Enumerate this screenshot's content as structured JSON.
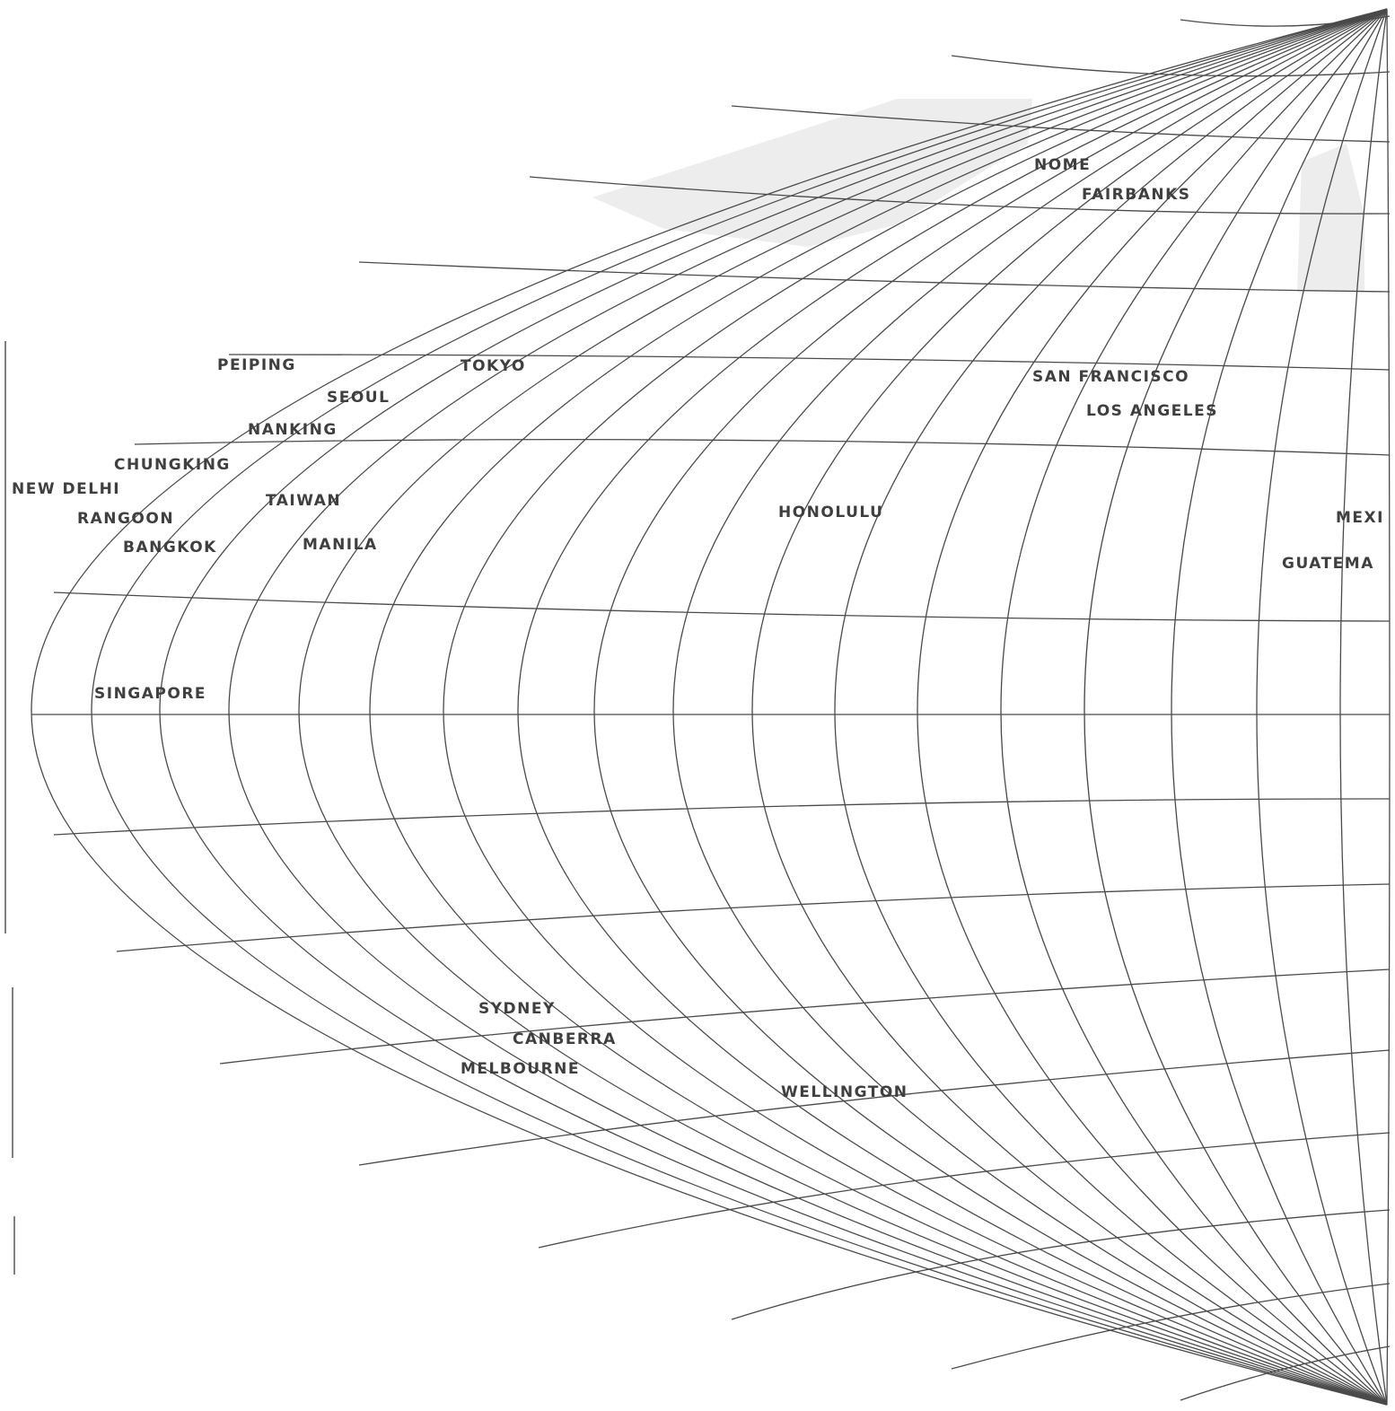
{
  "map": {
    "projection": "world grid (meridians and parallels), left half shown",
    "colors": {
      "background": "#ffffff",
      "grid": "#4a4a4a",
      "labels": "#3f3f3f"
    },
    "cities": [
      {
        "id": "nome",
        "name": "NOME"
      },
      {
        "id": "fairbanks",
        "name": "FAIRBANKS"
      },
      {
        "id": "peiping",
        "name": "PEIPING"
      },
      {
        "id": "tokyo",
        "name": "TOKYO"
      },
      {
        "id": "seoul",
        "name": "SEOUL"
      },
      {
        "id": "san-francisco",
        "name": "SAN FRANCISCO"
      },
      {
        "id": "los-angeles",
        "name": "LOS ANGELES"
      },
      {
        "id": "nanking",
        "name": "NANKING"
      },
      {
        "id": "chungking",
        "name": "CHUNGKING"
      },
      {
        "id": "new-delhi",
        "name": "NEW DELHI"
      },
      {
        "id": "taiwan",
        "name": "TAIWAN"
      },
      {
        "id": "honolulu",
        "name": "HONOLULU"
      },
      {
        "id": "mexi",
        "name": "MEXI"
      },
      {
        "id": "rangoon",
        "name": "RANGOON"
      },
      {
        "id": "bangkok",
        "name": "BANGKOK"
      },
      {
        "id": "manila",
        "name": "MANILA"
      },
      {
        "id": "guatema",
        "name": "GUATEMA"
      },
      {
        "id": "singapore",
        "name": "SINGAPORE"
      },
      {
        "id": "sydney",
        "name": "SYDNEY"
      },
      {
        "id": "canberra",
        "name": "CANBERRA"
      },
      {
        "id": "melbourne",
        "name": "MELBOURNE"
      },
      {
        "id": "wellington",
        "name": "WELLINGTON"
      }
    ]
  }
}
